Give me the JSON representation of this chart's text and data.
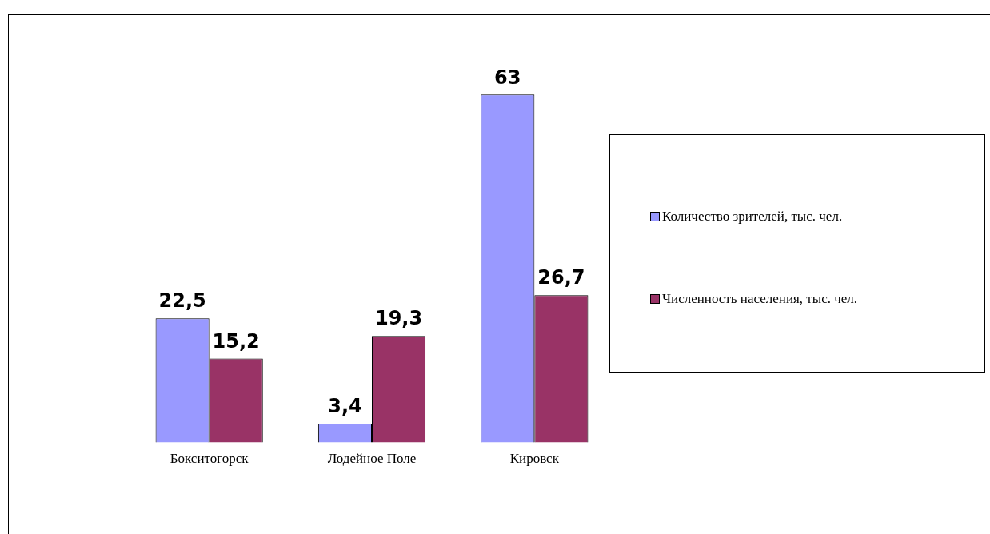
{
  "chart_data": {
    "type": "bar",
    "categories": [
      "Бокситогорск",
      "Лодейное Поле",
      "Кировск"
    ],
    "series": [
      {
        "name": "Количество зрителей, тыс. чел.",
        "color": "#9999ff",
        "values": [
          22.5,
          3.4,
          63
        ],
        "value_labels": [
          "22,5",
          "3,4",
          "63"
        ]
      },
      {
        "name": "Численность населения, тыс. чел.",
        "color": "#993366",
        "values": [
          15.2,
          19.3,
          26.7
        ],
        "value_labels": [
          "15,2",
          "19,3",
          "26,7"
        ]
      }
    ],
    "legend": "right",
    "grid": false
  }
}
